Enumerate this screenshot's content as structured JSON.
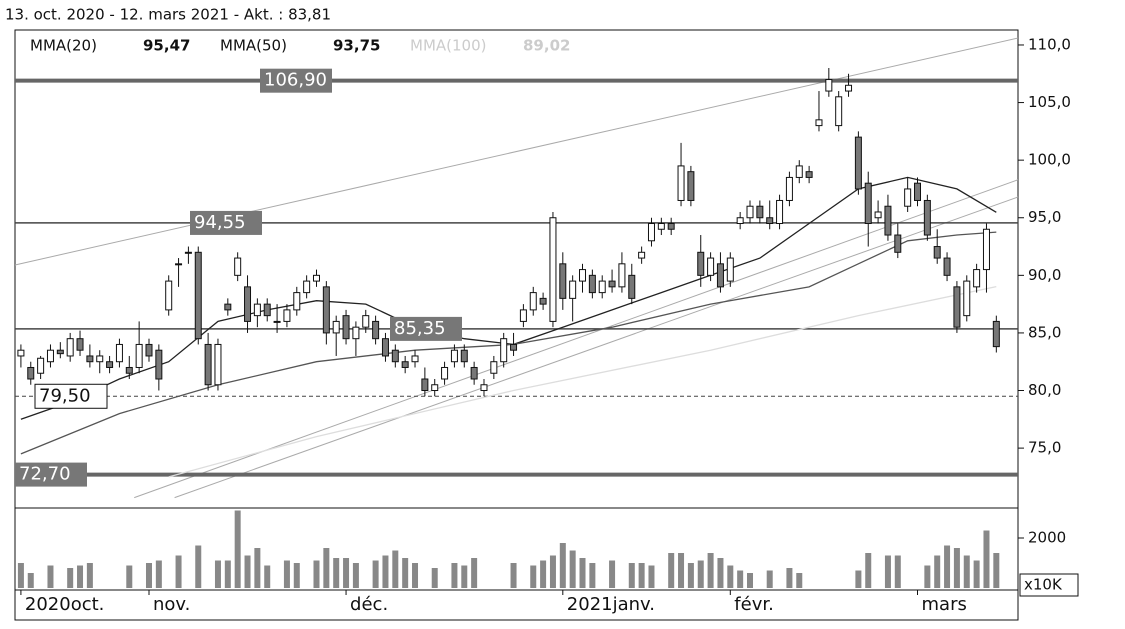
{
  "chart_data": {
    "type": "candlestick",
    "title": "13. oct. 2020 - 12. mars 2021 - Akt. : 83,81",
    "indicators": [
      {
        "name": "MMA(20)",
        "value": 95.47,
        "label": "95,47",
        "color": "#222222",
        "x": [
          0,
          5,
          10,
          15,
          20,
          25,
          30,
          35,
          40,
          45,
          50,
          55,
          60,
          65,
          70,
          75,
          80,
          85,
          90,
          95,
          99
        ],
        "values": [
          77.5,
          79,
          81,
          82.5,
          86,
          87,
          87.8,
          87.5,
          85.5,
          84.5,
          84,
          85.5,
          87,
          88.5,
          90,
          91.5,
          94.5,
          97.5,
          98.5,
          97.5,
          95.47
        ]
      },
      {
        "name": "MMA(50)",
        "value": 93.75,
        "label": "93,75",
        "color": "#555555",
        "x": [
          0,
          10,
          20,
          30,
          40,
          50,
          60,
          70,
          80,
          85,
          90,
          95,
          99
        ],
        "values": [
          74.5,
          78,
          80.5,
          82.5,
          83.5,
          84,
          85.5,
          87.5,
          89,
          91,
          93,
          93.5,
          93.75
        ]
      },
      {
        "name": "MMA(100)",
        "value": 89.02,
        "label": "89,02",
        "color": "#dddddd",
        "x": [
          15,
          30,
          50,
          70,
          85,
          99
        ],
        "values": [
          72.5,
          76,
          80,
          83.5,
          86.5,
          89.02
        ]
      }
    ],
    "candles": [
      [
        83,
        84,
        82,
        83.5
      ],
      [
        82,
        82.5,
        80.5,
        81
      ],
      [
        81.5,
        83,
        81,
        82.8
      ],
      [
        82.5,
        84,
        82,
        83.5
      ],
      [
        83.5,
        84.2,
        82.8,
        83.2
      ],
      [
        83,
        85,
        82.5,
        84.5
      ],
      [
        84.5,
        85.2,
        83,
        83.5
      ],
      [
        83,
        84,
        82,
        82.5
      ],
      [
        82.5,
        83.5,
        81.5,
        83
      ],
      [
        82.5,
        83,
        81.5,
        82
      ],
      [
        82.5,
        84.5,
        82,
        84
      ],
      [
        82,
        83,
        81,
        81.5
      ],
      [
        82,
        86,
        81.5,
        84
      ],
      [
        84,
        84.5,
        82.5,
        83
      ],
      [
        83.5,
        84,
        80,
        81
      ],
      [
        87,
        90,
        86.5,
        89.5
      ],
      [
        91,
        91.5,
        89,
        91
      ],
      [
        92,
        92.5,
        91,
        92
      ],
      [
        92,
        92.5,
        84,
        84.5
      ],
      [
        84,
        85,
        80,
        80.5
      ],
      [
        80.5,
        84.5,
        80,
        84
      ],
      [
        87.5,
        88,
        86.5,
        87
      ],
      [
        90,
        92,
        89.5,
        91.5
      ],
      [
        89,
        90,
        85,
        86
      ],
      [
        86.5,
        88,
        85.5,
        87.5
      ],
      [
        87.5,
        88,
        86,
        86.5
      ],
      [
        86,
        87.5,
        85,
        86
      ],
      [
        86,
        87.5,
        85.5,
        87
      ],
      [
        87,
        89,
        86.5,
        88.5
      ],
      [
        88.5,
        90,
        88,
        89.5
      ],
      [
        89.5,
        90.5,
        89,
        90
      ],
      [
        89,
        89.5,
        84,
        85
      ],
      [
        85,
        86.5,
        83,
        86
      ],
      [
        86.5,
        87,
        84,
        84.5
      ],
      [
        84.5,
        86,
        83,
        85.5
      ],
      [
        85.5,
        87,
        85,
        86.5
      ],
      [
        86,
        86.5,
        84,
        84.5
      ],
      [
        84.5,
        85,
        82.5,
        83
      ],
      [
        83.5,
        84,
        82,
        82.5
      ],
      [
        82.5,
        83,
        81.5,
        82
      ],
      [
        82.5,
        83.5,
        82,
        83
      ],
      [
        81,
        82,
        79.5,
        80
      ],
      [
        80,
        81,
        79.5,
        80.5
      ],
      [
        81,
        82.5,
        80.5,
        82
      ],
      [
        82.5,
        84,
        82,
        83.5
      ],
      [
        83.5,
        84,
        82,
        82.5
      ],
      [
        82,
        82.5,
        80.5,
        81
      ],
      [
        80,
        81,
        79.5,
        80.5
      ],
      [
        81.5,
        83,
        81,
        82.5
      ],
      [
        82.5,
        85,
        82,
        84.5
      ],
      [
        84,
        85,
        83,
        83.5
      ],
      [
        86,
        87.5,
        85.5,
        87
      ],
      [
        87,
        89,
        86.5,
        88.5
      ],
      [
        88,
        88.5,
        87,
        87.5
      ],
      [
        86,
        95.5,
        85.5,
        95
      ],
      [
        91,
        92,
        87,
        88
      ],
      [
        88,
        90,
        86,
        89.5
      ],
      [
        89.5,
        91,
        88.5,
        90.5
      ],
      [
        90,
        90.5,
        88,
        88.5
      ],
      [
        88.5,
        90,
        88,
        89.5
      ],
      [
        89.5,
        90.5,
        88.5,
        89
      ],
      [
        89,
        92,
        88.5,
        91
      ],
      [
        90,
        91,
        87.5,
        88
      ],
      [
        91.5,
        92.5,
        91,
        92
      ],
      [
        93,
        95,
        92.5,
        94.5
      ],
      [
        94,
        95,
        93.5,
        94.5
      ],
      [
        94.5,
        95,
        93.5,
        94
      ],
      [
        96.5,
        101.5,
        96,
        99.5
      ],
      [
        99,
        99.5,
        96,
        96.5
      ],
      [
        92,
        93.5,
        89,
        90
      ],
      [
        90,
        92,
        89.5,
        91.5
      ],
      [
        91,
        92,
        88.5,
        89
      ],
      [
        89.5,
        92,
        89,
        91.5
      ],
      [
        94.5,
        95.5,
        94,
        95
      ],
      [
        95,
        96.5,
        94.5,
        96
      ],
      [
        96,
        96.5,
        94.5,
        95
      ],
      [
        95,
        96.5,
        94,
        94.5
      ],
      [
        94.5,
        97,
        94,
        96.5
      ],
      [
        96.5,
        99,
        96,
        98.5
      ],
      [
        98.5,
        100,
        98,
        99.5
      ],
      [
        99,
        99.5,
        98,
        98.5
      ],
      [
        103,
        106,
        102.5,
        103.5
      ],
      [
        106,
        108,
        105.5,
        107
      ],
      [
        103,
        106,
        102.5,
        105.5
      ],
      [
        106,
        107.5,
        105.5,
        106.5
      ],
      [
        102,
        102.5,
        97,
        97.5
      ],
      [
        98,
        99,
        92.5,
        94.5
      ],
      [
        95,
        96.5,
        94.5,
        95.5
      ],
      [
        96,
        97,
        93,
        93.5
      ],
      [
        93.5,
        94.5,
        91.5,
        92
      ],
      [
        96,
        98.5,
        95.5,
        97.5
      ],
      [
        98,
        98.5,
        96,
        96.5
      ],
      [
        96.5,
        97,
        93,
        93.5
      ],
      [
        92.5,
        94,
        91,
        91.5
      ],
      [
        91.5,
        92,
        89.5,
        90
      ],
      [
        89,
        89.5,
        85,
        85.5
      ],
      [
        86.5,
        90,
        86,
        89.5
      ],
      [
        89,
        91,
        88.5,
        90.5
      ],
      [
        90.5,
        94.5,
        88.5,
        94
      ],
      [
        86,
        86.5,
        83.3,
        83.81
      ]
    ],
    "volume": [
      1000,
      600,
      0,
      900,
      0,
      800,
      900,
      1000,
      0,
      0,
      0,
      900,
      0,
      1000,
      1100,
      0,
      1300,
      0,
      1700,
      0,
      1100,
      1100,
      3100,
      1300,
      1600,
      900,
      0,
      1100,
      1000,
      0,
      1100,
      1600,
      1200,
      1200,
      1000,
      0,
      1100,
      1300,
      1500,
      1200,
      1000,
      0,
      800,
      0,
      1000,
      900,
      1200,
      0,
      0,
      0,
      1000,
      0,
      900,
      1100,
      1300,
      1800,
      1500,
      1200,
      1000,
      0,
      1100,
      0,
      1000,
      1000,
      900,
      0,
      1400,
      1400,
      1000,
      1100,
      1400,
      1200,
      900,
      700,
      600,
      0,
      700,
      0,
      800,
      600,
      0,
      0,
      0,
      0,
      0,
      700,
      1400,
      0,
      1300,
      1300,
      0,
      0,
      900,
      1300,
      1700,
      1600,
      1300,
      1100,
      2300,
      1400
    ],
    "volume_ylim": [
      0,
      3120
    ],
    "volume_yticks": [
      2000
    ],
    "volume_unit": "x10K",
    "levels": [
      {
        "value": 106.9,
        "label": "106,90",
        "style": "thick"
      },
      {
        "value": 94.55,
        "label": "94,55",
        "style": "medium"
      },
      {
        "value": 85.35,
        "label": "85,35",
        "style": "medium"
      },
      {
        "value": 79.5,
        "label": "79,50",
        "style": "dashed"
      },
      {
        "value": 72.7,
        "label": "72,70",
        "style": "thick"
      }
    ],
    "trendlines": [
      [
        -0.6,
        90.9,
        101.2,
        110.6
      ],
      [
        11.5,
        70.7,
        101.2,
        98.3
      ],
      [
        15.6,
        70.7,
        101.2,
        96.8
      ]
    ],
    "xlim": [
      -0.6,
      101.2
    ],
    "ylim": [
      69.8,
      111.3
    ],
    "xticks": [
      {
        "value": 0,
        "label": "2020oct."
      },
      {
        "value": 13,
        "label": "nov."
      },
      {
        "value": 33,
        "label": "déc."
      },
      {
        "value": 55,
        "label": "2021janv."
      },
      {
        "value": 72,
        "label": "févr."
      },
      {
        "value": 91,
        "label": "mars"
      }
    ],
    "yticks": [
      {
        "value": 75,
        "label": "75,0"
      },
      {
        "value": 80,
        "label": "80,0"
      },
      {
        "value": 85,
        "label": "85,0"
      },
      {
        "value": 90,
        "label": "90,0"
      },
      {
        "value": 95,
        "label": "95,0"
      },
      {
        "value": 100,
        "label": "100,0"
      },
      {
        "value": 105,
        "label": "105,0"
      },
      {
        "value": 110,
        "label": "110,0"
      }
    ]
  }
}
